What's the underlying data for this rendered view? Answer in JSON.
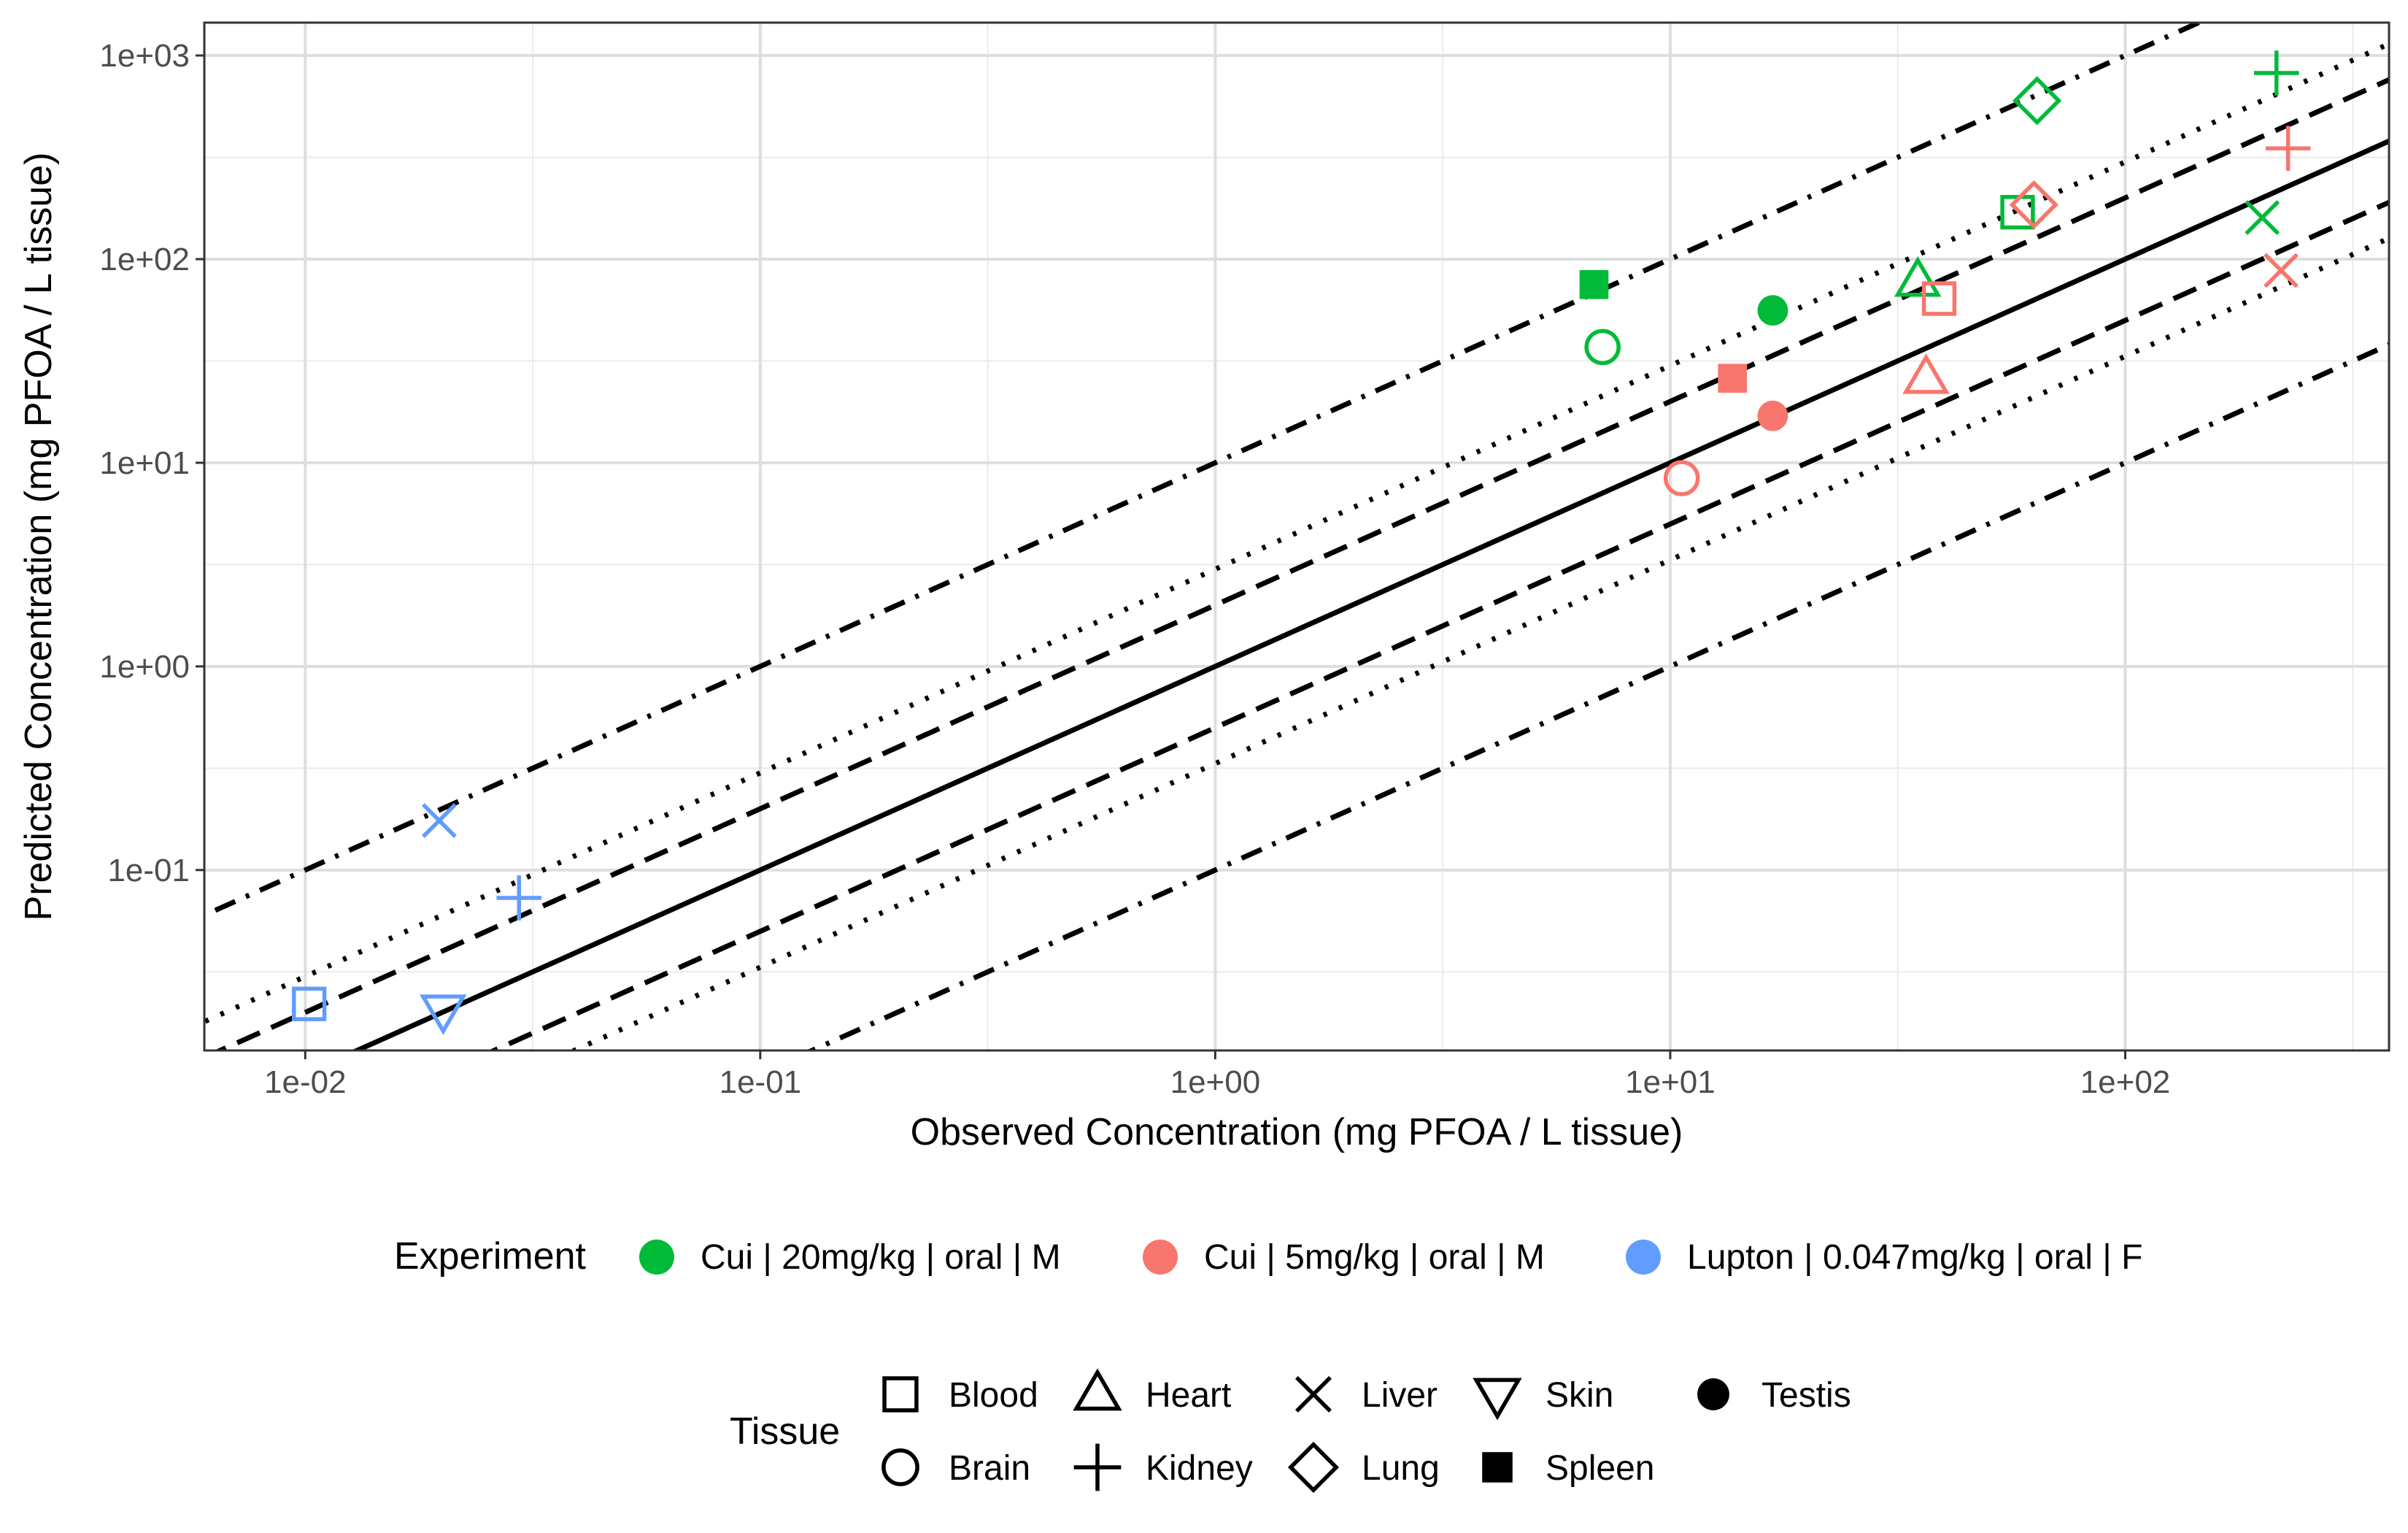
{
  "chart_data": {
    "type": "scatter",
    "scale": {
      "x": "log10",
      "y": "log10"
    },
    "xlim": [
      0.006,
      380
    ],
    "ylim": [
      0.013,
      1450
    ],
    "x_ticks": [
      0.01,
      0.1,
      1,
      10,
      100
    ],
    "y_ticks": [
      0.1,
      1,
      10,
      100,
      1000
    ],
    "x_tick_labels": [
      "1e-02",
      "1e-01",
      "1e+00",
      "1e+01",
      "1e+02"
    ],
    "y_tick_labels": [
      "1e-01",
      "1e+00",
      "1e+01",
      "1e+02",
      "1e+03"
    ],
    "xlabel": "Observed Concentration (mg PFOA / L tissue)",
    "ylabel": "Predicted Concentration (mg PFOA / L tissue)",
    "grid": true,
    "reference_lines": [
      {
        "factor": 1,
        "style": "solid"
      },
      {
        "factor": 2,
        "style": "dashed"
      },
      {
        "factor": 0.5,
        "style": "dashed"
      },
      {
        "factor": 3,
        "style": "dotted"
      },
      {
        "factor": 0.3333,
        "style": "dotted"
      },
      {
        "factor": 10,
        "style": "dotdash"
      },
      {
        "factor": 0.1,
        "style": "dotdash"
      }
    ],
    "experiments": [
      {
        "name": "Cui | 20mg/kg | oral | M",
        "color": "#00BA38"
      },
      {
        "name": "Cui | 5mg/kg | oral | M",
        "color": "#F8766D"
      },
      {
        "name": "Lupton | 0.047mg/kg | oral | F",
        "color": "#619CFF"
      }
    ],
    "tissues": [
      {
        "name": "Blood",
        "shape": "open-square"
      },
      {
        "name": "Brain",
        "shape": "open-circle"
      },
      {
        "name": "Heart",
        "shape": "open-triangle"
      },
      {
        "name": "Kidney",
        "shape": "plus"
      },
      {
        "name": "Liver",
        "shape": "cross"
      },
      {
        "name": "Lung",
        "shape": "open-diamond"
      },
      {
        "name": "Skin",
        "shape": "open-triangle-down"
      },
      {
        "name": "Spleen",
        "shape": "filled-square"
      },
      {
        "name": "Testis",
        "shape": "filled-circle"
      }
    ],
    "points": [
      {
        "experiment": "Cui | 20mg/kg | oral | M",
        "tissue": "Spleen",
        "x": 6.8,
        "y": 75
      },
      {
        "experiment": "Cui | 20mg/kg | oral | M",
        "tissue": "Brain",
        "x": 7.1,
        "y": 37
      },
      {
        "experiment": "Cui | 20mg/kg | oral | M",
        "tissue": "Testis",
        "x": 16.8,
        "y": 56
      },
      {
        "experiment": "Cui | 20mg/kg | oral | M",
        "tissue": "Heart",
        "x": 35,
        "y": 78
      },
      {
        "experiment": "Cui | 20mg/kg | oral | M",
        "tissue": "Blood",
        "x": 58,
        "y": 170
      },
      {
        "experiment": "Cui | 20mg/kg | oral | M",
        "tissue": "Lung",
        "x": 64,
        "y": 600
      },
      {
        "experiment": "Cui | 20mg/kg | oral | M",
        "tissue": "Liver",
        "x": 200,
        "y": 160
      },
      {
        "experiment": "Cui | 20mg/kg | oral | M",
        "tissue": "Kidney",
        "x": 215,
        "y": 820
      },
      {
        "experiment": "Cui | 5mg/kg | oral | M",
        "tissue": "Brain",
        "x": 10.6,
        "y": 8.4
      },
      {
        "experiment": "Cui | 5mg/kg | oral | M",
        "tissue": "Spleen",
        "x": 13.7,
        "y": 26
      },
      {
        "experiment": "Cui | 5mg/kg | oral | M",
        "tissue": "Testis",
        "x": 16.8,
        "y": 17
      },
      {
        "experiment": "Cui | 5mg/kg | oral | M",
        "tissue": "Heart",
        "x": 36.5,
        "y": 26
      },
      {
        "experiment": "Cui | 5mg/kg | oral | M",
        "tissue": "Blood",
        "x": 39,
        "y": 64
      },
      {
        "experiment": "Cui | 5mg/kg | oral | M",
        "tissue": "Lung",
        "x": 63,
        "y": 185
      },
      {
        "experiment": "Cui | 5mg/kg | oral | M",
        "tissue": "Liver",
        "x": 220,
        "y": 88
      },
      {
        "experiment": "Cui | 5mg/kg | oral | M",
        "tissue": "Kidney",
        "x": 228,
        "y": 350
      },
      {
        "experiment": "Lupton | 0.047mg/kg | oral | F",
        "tissue": "Blood",
        "x": 0.0102,
        "y": 0.022
      },
      {
        "experiment": "Lupton | 0.047mg/kg | oral | F",
        "tissue": "Liver",
        "x": 0.0197,
        "y": 0.175
      },
      {
        "experiment": "Lupton | 0.047mg/kg | oral | F",
        "tissue": "Skin",
        "x": 0.0201,
        "y": 0.0205
      },
      {
        "experiment": "Lupton | 0.047mg/kg | oral | F",
        "tissue": "Kidney",
        "x": 0.0295,
        "y": 0.073
      }
    ]
  },
  "legend": {
    "experiment_title": "Experiment",
    "tissue_title": "Tissue"
  }
}
